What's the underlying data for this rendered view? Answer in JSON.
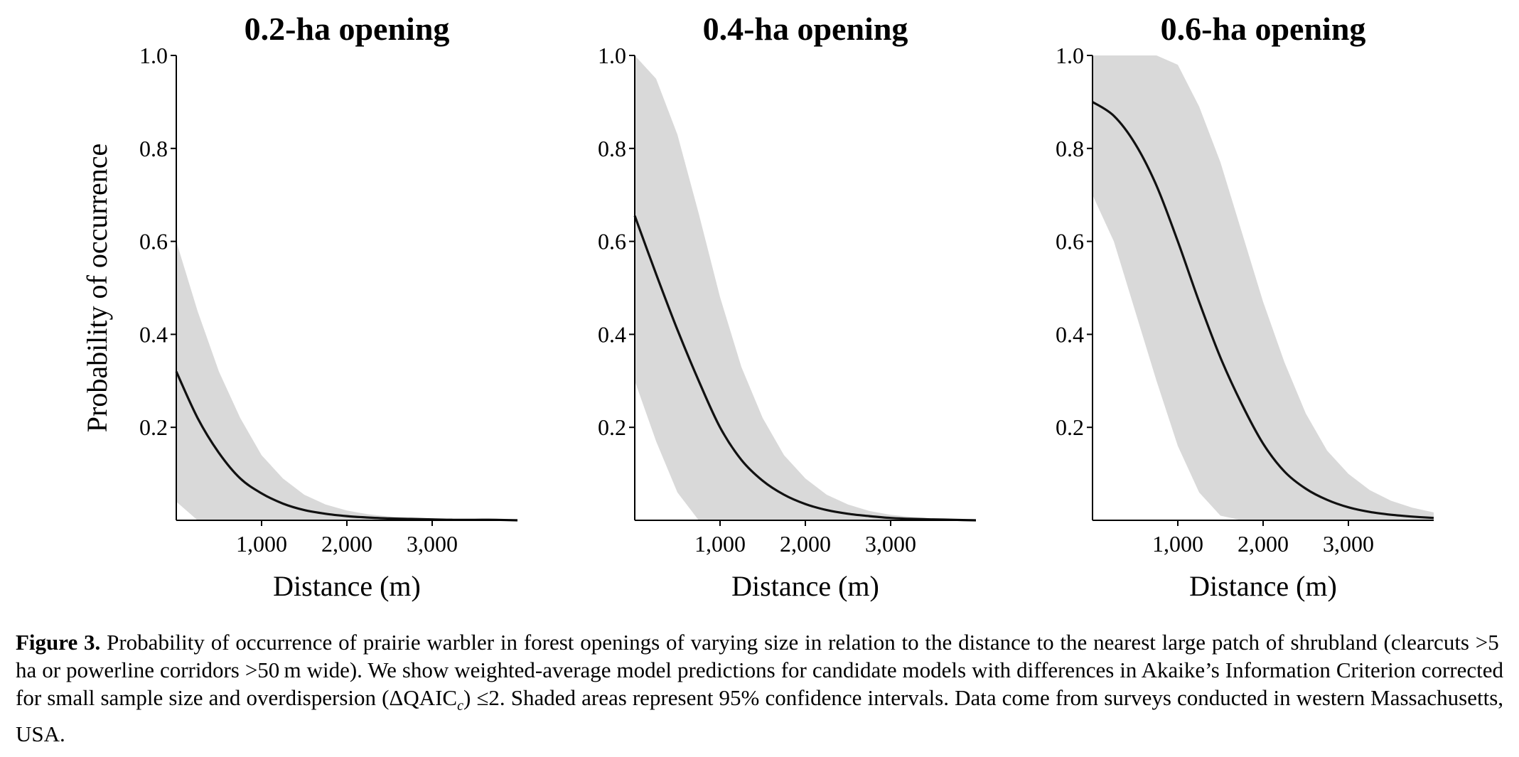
{
  "chart_data": [
    {
      "type": "line",
      "title": "0.2-ha opening",
      "xlabel": "Distance (m)",
      "ylabel": "Probability of occurrence",
      "xlim": [
        0,
        4000
      ],
      "ylim": [
        0,
        1.0
      ],
      "xticks": [
        1000,
        2000,
        3000
      ],
      "xtick_labels": [
        "1,000",
        "2,000",
        "3,000"
      ],
      "yticks": [
        0.2,
        0.4,
        0.6,
        0.8,
        1.0
      ],
      "ytick_labels": [
        "0.2",
        "0.4",
        "0.6",
        "0.8",
        "1.0"
      ],
      "grid": false,
      "series": [
        {
          "kind": "line",
          "x": [
            0,
            250,
            500,
            750,
            1000,
            1250,
            1500,
            1750,
            2000,
            2250,
            2500,
            2750,
            3000,
            3250,
            3500,
            3750,
            4000
          ],
          "y": [
            0.32,
            0.22,
            0.145,
            0.09,
            0.058,
            0.036,
            0.022,
            0.014,
            0.009,
            0.006,
            0.004,
            0.003,
            0.002,
            0.001,
            0.001,
            0.001,
            0.0
          ]
        },
        {
          "kind": "band",
          "x": [
            0,
            250,
            500,
            750,
            1000,
            1250,
            1500,
            1750,
            2000,
            2250,
            2500,
            2750,
            3000,
            3250,
            3500,
            3750,
            4000
          ],
          "lower": [
            0.04,
            0.0,
            0.0,
            0.0,
            0.0,
            0.0,
            0.0,
            0.0,
            0.0,
            0.0,
            0.0,
            0.0,
            0.0,
            0.0,
            0.0,
            0.0,
            0.0
          ],
          "upper": [
            0.6,
            0.45,
            0.32,
            0.22,
            0.14,
            0.09,
            0.055,
            0.034,
            0.021,
            0.013,
            0.008,
            0.005,
            0.003,
            0.002,
            0.001,
            0.001,
            0.0
          ]
        }
      ]
    },
    {
      "type": "line",
      "title": "0.4-ha opening",
      "xlabel": "Distance (m)",
      "ylabel": "",
      "xlim": [
        0,
        4000
      ],
      "ylim": [
        0,
        1.0
      ],
      "xticks": [
        1000,
        2000,
        3000
      ],
      "xtick_labels": [
        "1,000",
        "2,000",
        "3,000"
      ],
      "yticks": [
        0.2,
        0.4,
        0.6,
        0.8,
        1.0
      ],
      "ytick_labels": [
        "0.2",
        "0.4",
        "0.6",
        "0.8",
        "1.0"
      ],
      "grid": false,
      "series": [
        {
          "kind": "line",
          "x": [
            0,
            250,
            500,
            750,
            1000,
            1250,
            1500,
            1750,
            2000,
            2250,
            2500,
            2750,
            3000,
            3250,
            3500,
            3750,
            4000
          ],
          "y": [
            0.655,
            0.53,
            0.41,
            0.3,
            0.2,
            0.13,
            0.085,
            0.055,
            0.035,
            0.022,
            0.014,
            0.009,
            0.005,
            0.003,
            0.002,
            0.001,
            0.0
          ]
        },
        {
          "kind": "band",
          "x": [
            0,
            250,
            500,
            750,
            1000,
            1250,
            1500,
            1750,
            2000,
            2250,
            2500,
            2750,
            3000,
            3250,
            3500,
            3750,
            4000
          ],
          "lower": [
            0.3,
            0.17,
            0.06,
            0.0,
            0.0,
            0.0,
            0.0,
            0.0,
            0.0,
            0.0,
            0.0,
            0.0,
            0.0,
            0.0,
            0.0,
            0.0,
            0.0
          ],
          "upper": [
            1.0,
            0.95,
            0.83,
            0.66,
            0.48,
            0.33,
            0.22,
            0.14,
            0.09,
            0.055,
            0.034,
            0.02,
            0.012,
            0.007,
            0.004,
            0.002,
            0.001
          ]
        }
      ]
    },
    {
      "type": "line",
      "title": "0.6-ha opening",
      "xlabel": "Distance (m)",
      "ylabel": "",
      "xlim": [
        0,
        4000
      ],
      "ylim": [
        0,
        1.0
      ],
      "xticks": [
        1000,
        2000,
        3000
      ],
      "xtick_labels": [
        "1,000",
        "2,000",
        "3,000"
      ],
      "yticks": [
        0.2,
        0.4,
        0.6,
        0.8,
        1.0
      ],
      "ytick_labels": [
        "0.2",
        "0.4",
        "0.6",
        "0.8",
        "1.0"
      ],
      "grid": false,
      "series": [
        {
          "kind": "line",
          "x": [
            0,
            250,
            500,
            750,
            1000,
            1250,
            1500,
            1750,
            2000,
            2250,
            2500,
            2750,
            3000,
            3250,
            3500,
            3750,
            4000
          ],
          "y": [
            0.9,
            0.87,
            0.81,
            0.72,
            0.6,
            0.47,
            0.35,
            0.25,
            0.165,
            0.105,
            0.068,
            0.044,
            0.028,
            0.018,
            0.012,
            0.008,
            0.005
          ]
        },
        {
          "kind": "band",
          "x": [
            0,
            250,
            500,
            750,
            1000,
            1250,
            1500,
            1750,
            2000,
            2250,
            2500,
            2750,
            3000,
            3250,
            3500,
            3750,
            4000
          ],
          "lower": [
            0.7,
            0.6,
            0.45,
            0.3,
            0.16,
            0.06,
            0.01,
            0.0,
            0.0,
            0.0,
            0.0,
            0.0,
            0.0,
            0.0,
            0.0,
            0.0,
            0.0
          ],
          "upper": [
            1.0,
            1.0,
            1.0,
            1.0,
            0.98,
            0.89,
            0.77,
            0.62,
            0.47,
            0.34,
            0.23,
            0.15,
            0.1,
            0.065,
            0.042,
            0.027,
            0.017
          ]
        }
      ]
    }
  ],
  "caption": {
    "label": "Figure 3.",
    "text_part1": " Probability of occurrence of prairie warbler in forest openings of varying size in relation to the distance to the nearest large patch of shrubland (clearcuts >5 ha or powerline corridors >50 m wide). We show weighted-average model predictions for candidate models with differences in Akaike’s Information Criterion corrected for small sample size and overdispersion (ΔQAIC",
    "subscript": "c",
    "text_part2": ") ≤2. Shaded areas represent 95% confidence intervals. Data come from surveys conducted in western Massachusetts, USA."
  },
  "colors": {
    "line": "#111111",
    "band": "#d9d9d9",
    "axis": "#000000"
  }
}
